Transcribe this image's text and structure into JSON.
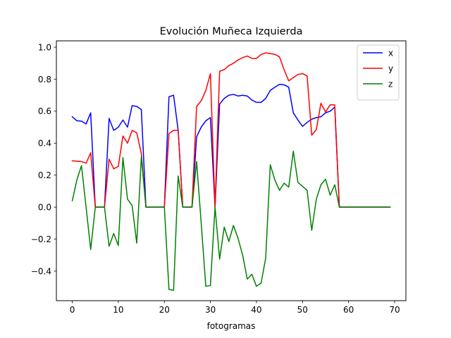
{
  "chart_data": {
    "type": "line",
    "title": "Evolución Muñeca Izquierda",
    "xlabel": "fotogramas",
    "ylabel": "",
    "xlim": [
      -3.45,
      72.45
    ],
    "ylim": [
      -0.585,
      1.04
    ],
    "xticks": [
      0,
      10,
      20,
      30,
      40,
      50,
      60,
      70
    ],
    "yticks": [
      -0.4,
      -0.2,
      0.0,
      0.2,
      0.4,
      0.6,
      0.8,
      1.0
    ],
    "xtick_labels": [
      "0",
      "10",
      "20",
      "30",
      "40",
      "50",
      "60",
      "70"
    ],
    "ytick_labels": [
      "−0.4",
      "−0.2",
      "0.0",
      "0.2",
      "0.4",
      "0.6",
      "0.8",
      "1.0"
    ],
    "grid": false,
    "legend_position": "top-right",
    "x": [
      0,
      1,
      2,
      3,
      4,
      5,
      6,
      7,
      8,
      9,
      10,
      11,
      12,
      13,
      14,
      15,
      16,
      17,
      18,
      19,
      20,
      21,
      22,
      23,
      24,
      25,
      26,
      27,
      28,
      29,
      30,
      31,
      32,
      33,
      34,
      35,
      36,
      37,
      38,
      39,
      40,
      41,
      42,
      43,
      44,
      45,
      46,
      47,
      48,
      49,
      50,
      51,
      52,
      53,
      54,
      55,
      56,
      57,
      58,
      59,
      60,
      61,
      62,
      63,
      64,
      65,
      66,
      67,
      68,
      69
    ],
    "series": [
      {
        "name": "x",
        "color": "#0000ff",
        "values": [
          0.565,
          0.54,
          0.538,
          0.52,
          0.59,
          0.0,
          0.0,
          0.0,
          0.555,
          0.48,
          0.5,
          0.545,
          0.5,
          0.635,
          0.63,
          0.61,
          0.0,
          0.0,
          0.0,
          0.0,
          0.0,
          0.69,
          0.7,
          0.48,
          0.0,
          0.0,
          0.0,
          0.44,
          0.5,
          0.54,
          0.56,
          0.0,
          0.645,
          0.68,
          0.7,
          0.705,
          0.695,
          0.7,
          0.695,
          0.67,
          0.655,
          0.655,
          0.68,
          0.73,
          0.75,
          0.768,
          0.765,
          0.75,
          0.59,
          0.545,
          0.505,
          0.53,
          0.55,
          0.56,
          0.565,
          0.59,
          0.6,
          0.625,
          0.0,
          0.0,
          0.0,
          0.0,
          0.0,
          0.0,
          0.0,
          0.0,
          0.0,
          0.0,
          0.0,
          0.0
        ]
      },
      {
        "name": "y",
        "color": "#ff0000",
        "values": [
          0.29,
          0.287,
          0.285,
          0.275,
          0.34,
          0.0,
          0.0,
          0.0,
          0.3,
          0.24,
          0.255,
          0.445,
          0.4,
          0.48,
          0.465,
          0.335,
          0.0,
          0.0,
          0.0,
          0.0,
          0.0,
          0.46,
          0.48,
          0.48,
          0.0,
          0.0,
          0.0,
          0.63,
          0.665,
          0.73,
          0.835,
          0.0,
          0.85,
          0.86,
          0.885,
          0.9,
          0.92,
          0.935,
          0.945,
          0.93,
          0.93,
          0.955,
          0.965,
          0.96,
          0.955,
          0.94,
          0.86,
          0.79,
          0.81,
          0.83,
          0.835,
          0.82,
          0.45,
          0.485,
          0.65,
          0.595,
          0.64,
          0.64,
          0.0,
          0.0,
          0.0,
          0.0,
          0.0,
          0.0,
          0.0,
          0.0,
          0.0,
          0.0,
          0.0,
          0.0
        ]
      },
      {
        "name": "z",
        "color": "#008000",
        "values": [
          0.04,
          0.17,
          0.26,
          0.0,
          -0.265,
          0.0,
          0.0,
          0.0,
          -0.245,
          -0.165,
          -0.24,
          0.31,
          0.05,
          0.01,
          -0.225,
          0.315,
          0.0,
          0.0,
          0.0,
          0.0,
          0.0,
          -0.515,
          -0.52,
          0.195,
          0.0,
          0.0,
          0.0,
          0.285,
          -0.1,
          -0.495,
          -0.49,
          0.0,
          -0.325,
          -0.125,
          -0.215,
          -0.115,
          -0.195,
          -0.3,
          -0.45,
          -0.42,
          -0.495,
          -0.475,
          -0.32,
          0.265,
          0.17,
          0.105,
          0.15,
          0.125,
          0.35,
          0.155,
          0.13,
          0.105,
          -0.145,
          0.05,
          0.14,
          0.175,
          0.075,
          0.14,
          0.0,
          0.0,
          0.0,
          0.0,
          0.0,
          0.0,
          0.0,
          0.0,
          0.0,
          0.0,
          0.0,
          0.0
        ]
      }
    ]
  }
}
